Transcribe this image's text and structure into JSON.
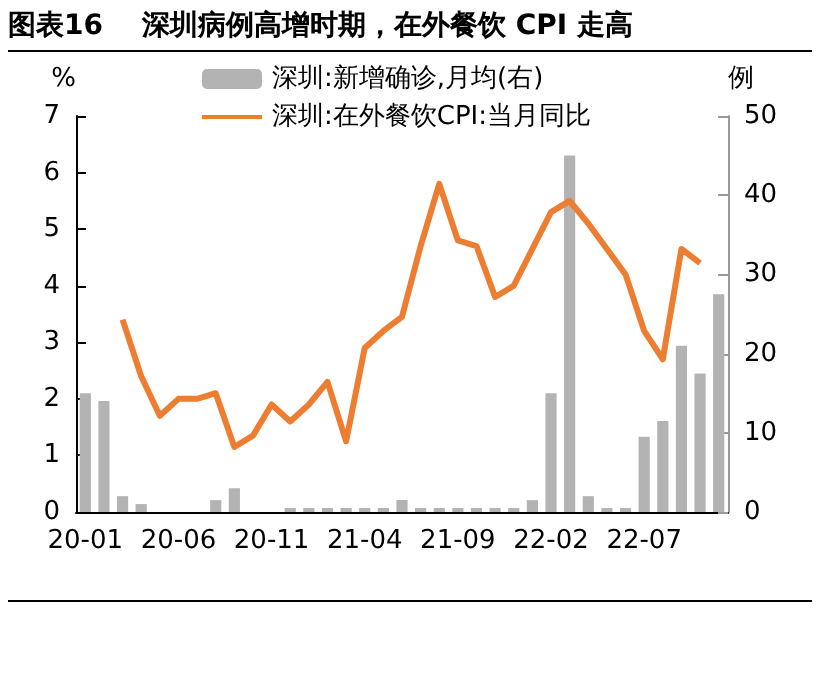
{
  "chart_data": {
    "type": "bar",
    "title": "图表16    深圳病例高增时期，在外餐饮 CPI 走高",
    "ylabel": "%",
    "y2label": "例",
    "categories": [
      "20-01",
      null,
      null,
      null,
      null,
      "20-06",
      null,
      null,
      null,
      null,
      "20-11",
      null,
      null,
      null,
      null,
      "21-04",
      null,
      null,
      null,
      null,
      "21-09",
      null,
      null,
      null,
      null,
      "22-02",
      null,
      null,
      null,
      null,
      "22-07",
      null,
      null,
      null,
      null
    ],
    "series": [
      {
        "name": "深圳:新增确诊,月均(右)",
        "axis": "y2",
        "color": "#b3b3b3",
        "values": [
          15,
          14,
          2,
          1,
          0,
          0,
          0,
          1.5,
          3,
          0,
          0,
          0.5,
          0.5,
          0.5,
          0.5,
          0.5,
          0.5,
          1.5,
          0.5,
          0.5,
          0.5,
          0.5,
          0.5,
          0.5,
          1.5,
          15,
          45,
          2,
          0.5,
          0.5,
          9.5,
          11.5,
          21,
          17.5,
          27.5
        ]
      },
      {
        "name": "深圳:在外餐饮CPI:当月同比",
        "type": "line",
        "color": "#ed7d31",
        "values": [
          null,
          null,
          3.4,
          2.4,
          1.7,
          2.0,
          2.0,
          2.1,
          1.15,
          1.35,
          1.9,
          1.6,
          1.9,
          2.3,
          1.25,
          2.9,
          3.2,
          3.45,
          4.7,
          5.8,
          4.8,
          4.7,
          3.8,
          4.0,
          4.65,
          5.3,
          5.5,
          5.1,
          4.65,
          4.2,
          3.2,
          2.7,
          4.65,
          4.4,
          null
        ]
      }
    ],
    "ylim": [
      0,
      7
    ],
    "yticks": [
      0,
      1,
      2,
      3,
      4,
      5,
      6,
      7
    ],
    "y2lim": [
      0,
      50
    ],
    "y2ticks": [
      0,
      10,
      20,
      30,
      40,
      50
    ],
    "grid": false,
    "legend": "top",
    "marker": "none",
    "line_style": "solid"
  }
}
